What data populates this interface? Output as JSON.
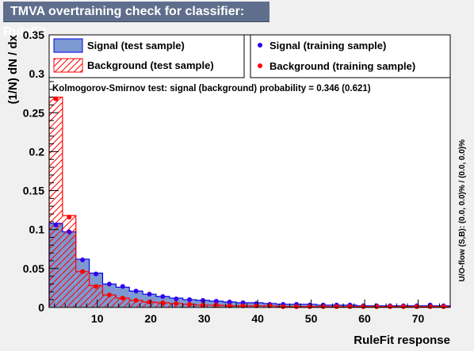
{
  "title": "TMVA overtraining check for classifier: RuleFit",
  "chart_data": {
    "type": "bar",
    "xlabel": "RuleFit response",
    "ylabel": "(1/N) dN / dx",
    "xlim": [
      1,
      76
    ],
    "ylim": [
      0,
      0.35
    ],
    "x_ticks": [
      10,
      20,
      30,
      40,
      50,
      60,
      70
    ],
    "y_ticks": [
      0,
      0.05,
      0.1,
      0.15,
      0.2,
      0.25,
      0.3,
      0.35
    ],
    "x_tick_labels": [
      "10",
      "20",
      "30",
      "40",
      "50",
      "60",
      "70"
    ],
    "y_tick_labels": [
      "0",
      "0.05",
      "0.1",
      "0.15",
      "0.2",
      "0.25",
      "0.3",
      "0.35"
    ],
    "bin_edges_start": 1,
    "bin_width": 2.5,
    "ks_text": "Kolmogorov-Smirnov test: signal (background) probability = 0.346 (0.621)",
    "side_label": "U/O-flow (S,B): (0.0, 0.0)% / (0.0, 0.0)%",
    "legend_placement": "top",
    "series": [
      {
        "name": "Signal (test sample)",
        "style": "filled-histogram",
        "fill": "#7d99d1",
        "line": "#0000ee",
        "values": [
          0.108,
          0.097,
          0.062,
          0.044,
          0.03,
          0.026,
          0.021,
          0.017,
          0.014,
          0.012,
          0.01,
          0.009,
          0.008,
          0.007,
          0.006,
          0.006,
          0.005,
          0.004,
          0.004,
          0.004,
          0.003,
          0.003,
          0.003,
          0.002,
          0.002,
          0.002,
          0.002,
          0.002,
          0.002,
          0.002
        ]
      },
      {
        "name": "Background (test sample)",
        "style": "hatched-histogram",
        "line": "#ff0000",
        "values": [
          0.27,
          0.118,
          0.046,
          0.028,
          0.016,
          0.012,
          0.009,
          0.007,
          0.006,
          0.005,
          0.004,
          0.003,
          0.003,
          0.002,
          0.002,
          0.002,
          0.002,
          0.001,
          0.001,
          0.001,
          0.001,
          0.001,
          0.001,
          0.001,
          0.001,
          0.001,
          0.001,
          0.001,
          0.001,
          0.001
        ]
      },
      {
        "name": "Signal (training sample)",
        "style": "points",
        "color": "#3300ee",
        "values": [
          0.106,
          0.097,
          0.061,
          0.043,
          0.03,
          0.027,
          0.021,
          0.017,
          0.014,
          0.011,
          0.01,
          0.009,
          0.008,
          0.007,
          0.006,
          0.005,
          0.004,
          0.004,
          0.004,
          0.003,
          0.003,
          0.003,
          0.003,
          0.002,
          0.002,
          0.002,
          0.002,
          0.002,
          0.003,
          0.002
        ]
      },
      {
        "name": "Background (training sample)",
        "style": "points",
        "color": "#ff0000",
        "values": [
          0.268,
          0.116,
          0.046,
          0.027,
          0.016,
          0.012,
          0.009,
          0.007,
          0.006,
          0.005,
          0.004,
          0.003,
          0.003,
          0.002,
          0.002,
          0.002,
          0.002,
          0.001,
          0.001,
          0.001,
          0.001,
          0.001,
          0.001,
          0.001,
          0.001,
          0.001,
          0.001,
          0.001,
          0.001,
          0.001
        ]
      }
    ]
  }
}
